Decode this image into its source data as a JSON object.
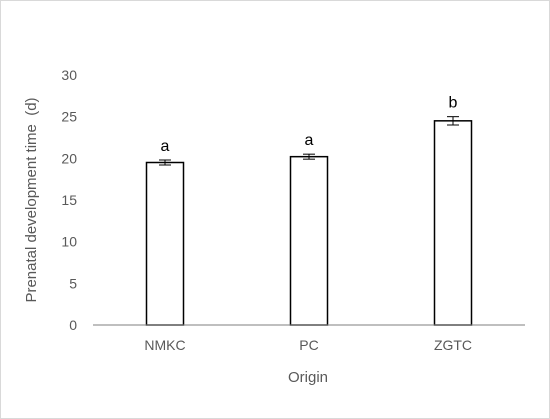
{
  "chart_data": {
    "type": "bar",
    "categories": [
      "NMKC",
      "PC",
      "ZGTC"
    ],
    "values": [
      19.5,
      20.2,
      24.5
    ],
    "errors": [
      0.3,
      0.3,
      0.5
    ],
    "significance_labels": [
      "a",
      "a",
      "b"
    ],
    "xlabel": "Origin",
    "ylabel": "Prenatal development time  (d)",
    "ylim": [
      0,
      30
    ],
    "yticks": [
      0,
      5,
      10,
      15,
      20,
      25,
      30
    ],
    "grid": false,
    "legend": false,
    "colors": {
      "bar_fill": "#ffffff",
      "bar_stroke": "#000000",
      "axis": "#7f7f7f",
      "text": "#595959"
    }
  }
}
